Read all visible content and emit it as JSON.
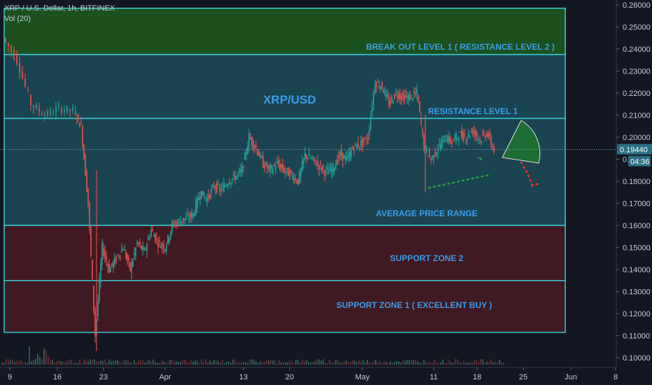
{
  "header": {
    "symbol_line": "XRP / U.S. Dollar, 1h, BITFINEX",
    "volume_line": "Vol (20)"
  },
  "price_tag": {
    "price": "0.19440",
    "countdown": "04:36"
  },
  "colors": {
    "background": "#131722",
    "zone_green": "#1e5a1e",
    "zone_teal": "#1c4c5a",
    "zone_red": "#4a1a22",
    "zone_border": "#39c9d2",
    "label_blue": "#3d9be9",
    "candle_up": "#26a69a",
    "candle_down": "#ef5350"
  },
  "chart_data": {
    "type": "candlestick",
    "title": "XRP/USD",
    "yaxis_ticks": [
      "0.26000",
      "0.25000",
      "0.24000",
      "0.23000",
      "0.22000",
      "0.21000",
      "0.20000",
      "0.19000",
      "0.18000",
      "0.17000",
      "0.16000",
      "0.15000",
      "0.14000",
      "0.13000",
      "0.12000",
      "0.11000",
      "0.10000"
    ],
    "xaxis_ticks": [
      "9",
      "16",
      "23",
      "Apr",
      "13",
      "20",
      "May",
      "11",
      "18",
      "25",
      "Jun",
      "8"
    ],
    "zones": [
      {
        "label": "BREAK OUT LEVEL 1 ( RESISTANCE LEVEL 2 )",
        "top": 0.2585,
        "bottom": 0.2375,
        "color": "green"
      },
      {
        "label": "RESISTANCE LEVEL 1",
        "top": 0.2375,
        "bottom": 0.2085,
        "color": "teal"
      },
      {
        "label": "AVERAGE PRICE RANGE",
        "top": 0.2085,
        "bottom": 0.16,
        "color": "teal"
      },
      {
        "label": "SUPPORT ZONE 2",
        "top": 0.16,
        "bottom": 0.135,
        "color": "red"
      },
      {
        "label": "SUPPORT ZONE 1 ( EXCELLENT BUY )",
        "top": 0.135,
        "bottom": 0.1115,
        "color": "red"
      }
    ],
    "price_path": [
      [
        0,
        0.245
      ],
      [
        2,
        0.235
      ],
      [
        4,
        0.215
      ],
      [
        6,
        0.21
      ],
      [
        8,
        0.213
      ],
      [
        10,
        0.212
      ],
      [
        11,
        0.205
      ],
      [
        12,
        0.17
      ],
      [
        13,
        0.11
      ],
      [
        14,
        0.15
      ],
      [
        15,
        0.14
      ],
      [
        16,
        0.145
      ],
      [
        17,
        0.15
      ],
      [
        18,
        0.14
      ],
      [
        19,
        0.152
      ],
      [
        20,
        0.148
      ],
      [
        21,
        0.158
      ],
      [
        22,
        0.152
      ],
      [
        23,
        0.15
      ],
      [
        24,
        0.16
      ],
      [
        25,
        0.162
      ],
      [
        26,
        0.163
      ],
      [
        27,
        0.165
      ],
      [
        28,
        0.175
      ],
      [
        29,
        0.172
      ],
      [
        30,
        0.178
      ],
      [
        31,
        0.176
      ],
      [
        32,
        0.18
      ],
      [
        33,
        0.182
      ],
      [
        34,
        0.185
      ],
      [
        35,
        0.2
      ],
      [
        36,
        0.195
      ],
      [
        37,
        0.188
      ],
      [
        38,
        0.185
      ],
      [
        39,
        0.188
      ],
      [
        40,
        0.185
      ],
      [
        41,
        0.183
      ],
      [
        42,
        0.18
      ],
      [
        43,
        0.192
      ],
      [
        44,
        0.19
      ],
      [
        45,
        0.187
      ],
      [
        46,
        0.184
      ],
      [
        47,
        0.186
      ],
      [
        48,
        0.192
      ],
      [
        49,
        0.19
      ],
      [
        50,
        0.196
      ],
      [
        51,
        0.197
      ],
      [
        52,
        0.2
      ],
      [
        53,
        0.225
      ],
      [
        54,
        0.223
      ],
      [
        55,
        0.215
      ],
      [
        56,
        0.22
      ],
      [
        57,
        0.218
      ],
      [
        58,
        0.218
      ],
      [
        59,
        0.22
      ],
      [
        60,
        0.196
      ],
      [
        61,
        0.19
      ],
      [
        62,
        0.195
      ],
      [
        63,
        0.2
      ],
      [
        64,
        0.198
      ],
      [
        65,
        0.201
      ],
      [
        66,
        0.2
      ],
      [
        67,
        0.203
      ],
      [
        68,
        0.199
      ],
      [
        69,
        0.202
      ],
      [
        70,
        0.194
      ]
    ],
    "projection_up": [
      [
        60,
        0.177
      ],
      [
        70,
        0.186
      ]
    ],
    "projection_down": [
      [
        72,
        0.194
      ],
      [
        76,
        0.178
      ]
    ],
    "last_price": 0.1944
  }
}
